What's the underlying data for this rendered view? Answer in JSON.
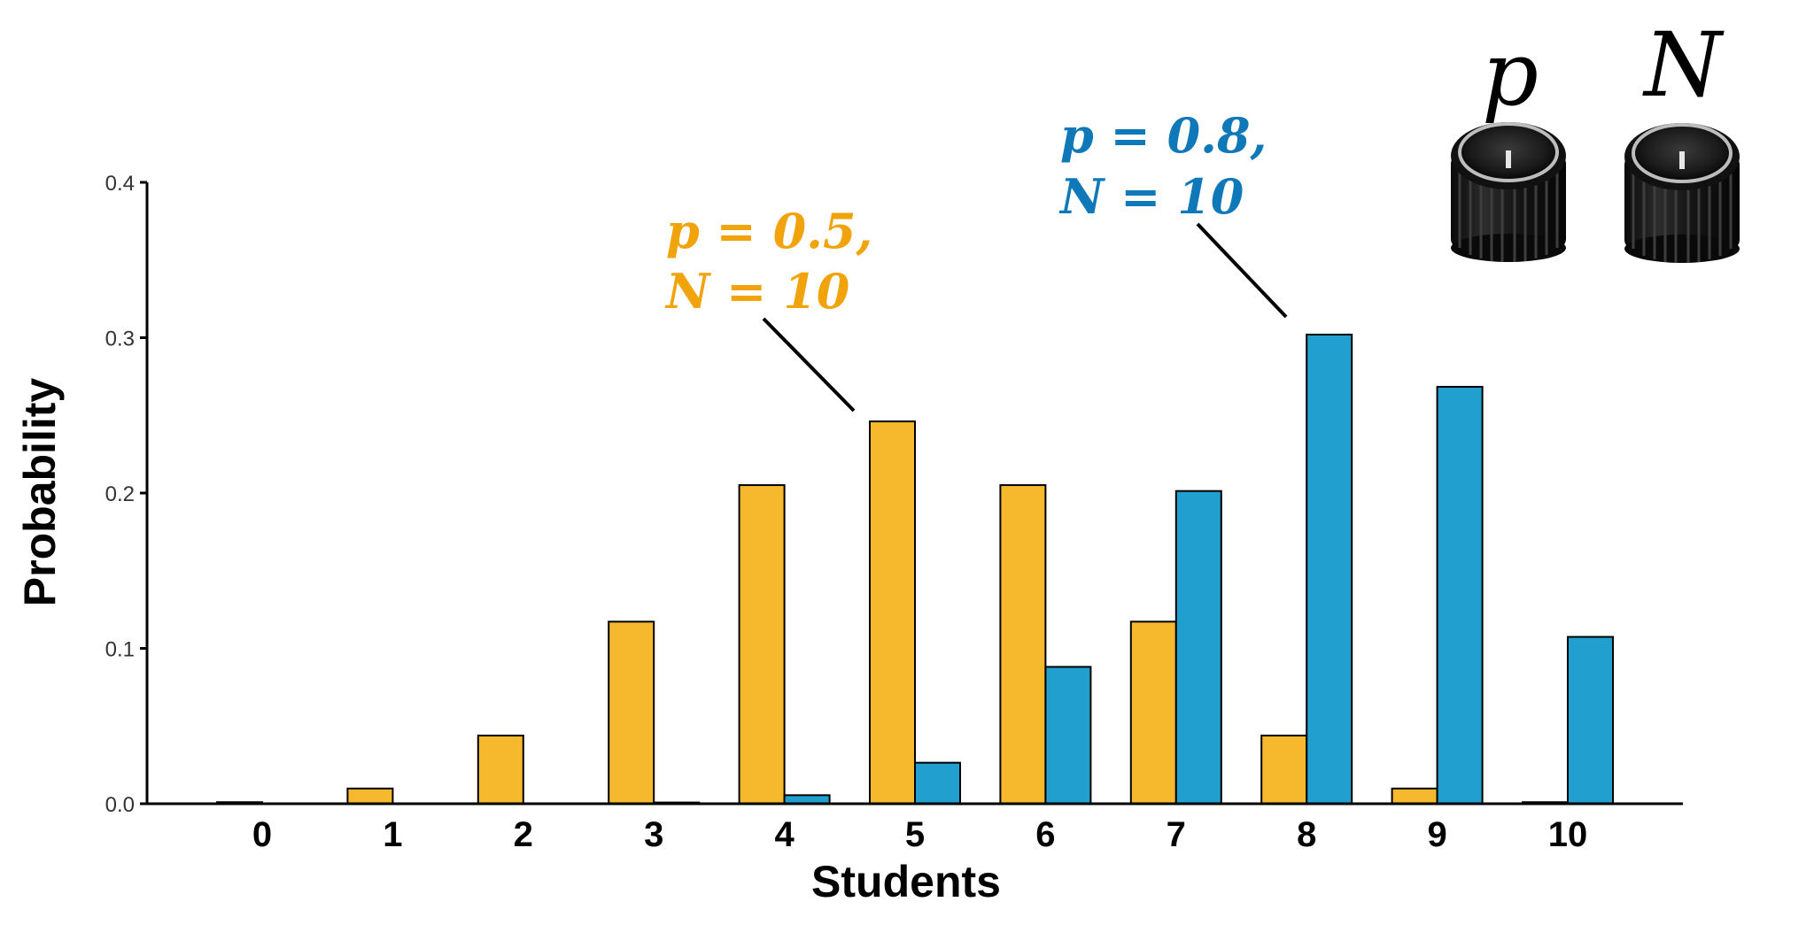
{
  "chart_data": {
    "type": "bar",
    "xlabel": "Students",
    "ylabel": "Probability",
    "ylim": [
      0,
      0.4
    ],
    "yticks": [
      "0.0",
      "0.1",
      "0.2",
      "0.3",
      "0.4"
    ],
    "categories": [
      "0",
      "1",
      "2",
      "3",
      "4",
      "5",
      "6",
      "7",
      "8",
      "9",
      "10"
    ],
    "series": [
      {
        "color": "#F6B92E",
        "values": [
          0.001,
          0.0098,
          0.0439,
          0.1172,
          0.2051,
          0.2461,
          0.2051,
          0.1172,
          0.0439,
          0.0098,
          0.001
        ]
      },
      {
        "color": "#219FCF",
        "values": [
          0.0,
          0.0,
          0.0001,
          0.0008,
          0.0055,
          0.0264,
          0.0881,
          0.2013,
          0.302,
          0.2684,
          0.1074
        ]
      }
    ],
    "annotations": [
      {
        "line1": "p = 0.5,",
        "line2": "N = 10",
        "color": "#F0A30A"
      },
      {
        "line1": "p = 0.8,",
        "line2": "N = 10",
        "color": "#0E78B8"
      }
    ]
  },
  "knobs": [
    {
      "label": "p",
      "icon": "knob-icon"
    },
    {
      "label": "N",
      "icon": "knob-icon"
    }
  ]
}
